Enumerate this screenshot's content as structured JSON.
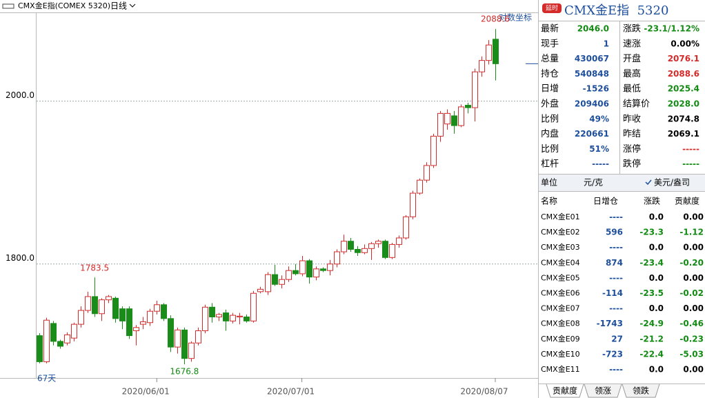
{
  "header": {
    "symbol": "CMX金E指(COMEX 5320)",
    "period": "日线"
  },
  "chart_data": {
    "type": "candlestick",
    "day_count": "67天",
    "log_button": "对数坐标",
    "categories": [
      null,
      null,
      null,
      null,
      null,
      null,
      null,
      null,
      null,
      null,
      null,
      null,
      null,
      null,
      null,
      null,
      null,
      "2020/06/01",
      null,
      null,
      null,
      null,
      null,
      null,
      null,
      null,
      null,
      null,
      null,
      null,
      null,
      null,
      null,
      null,
      null,
      null,
      null,
      null,
      "2020/07/01",
      null,
      null,
      null,
      null,
      null,
      null,
      null,
      null,
      null,
      null,
      null,
      null,
      null,
      null,
      null,
      null,
      null,
      null,
      null,
      null,
      null,
      null,
      null,
      null,
      null,
      null,
      null,
      "2020/08/07"
    ],
    "open": [
      1712,
      1680,
      1727,
      1705,
      1703,
      1709,
      1726,
      1743,
      1760,
      1739,
      1756,
      1758,
      1745,
      1745,
      1718,
      1726,
      1728,
      1742,
      1750,
      1733,
      1698,
      1719,
      1684,
      1703,
      1718,
      1747,
      1735,
      1740,
      1730,
      1735,
      1735,
      1730,
      1766,
      1766,
      1787,
      1775,
      1781,
      1792,
      1788,
      1804,
      1784,
      1794,
      1792,
      1800,
      1815,
      1828,
      1818,
      1814,
      1819,
      1825,
      1828,
      1808,
      1824,
      1832,
      1858,
      1887,
      1903,
      1921,
      1957,
      1972,
      1982,
      1970,
      1995,
      1992,
      2036,
      2050,
      2076.1
    ],
    "high": [
      1715,
      1734,
      1730,
      1707,
      1716,
      1728,
      1748,
      1766,
      1783.5,
      1758,
      1762,
      1760,
      1748,
      1748,
      1725,
      1735,
      1745,
      1755,
      1752,
      1737,
      1722,
      1722,
      1705,
      1722,
      1750,
      1752,
      1740,
      1744,
      1740,
      1740,
      1738,
      1767,
      1772,
      1790,
      1799,
      1786,
      1797,
      1800,
      1810,
      1806,
      1797,
      1796,
      1805,
      1818,
      1836,
      1832,
      1822,
      1824,
      1827,
      1830,
      1830,
      1826,
      1835,
      1860,
      1890,
      1905,
      1925,
      1960,
      1988,
      1990,
      1988,
      1996,
      1998,
      2040,
      2055,
      2075,
      2088.6
    ],
    "low": [
      1678,
      1678,
      1700,
      1696,
      1700,
      1705,
      1722,
      1740,
      1735,
      1730,
      1752,
      1728,
      1720,
      1708,
      1700,
      1720,
      1724,
      1738,
      1730,
      1692,
      1690,
      1676.8,
      1680,
      1700,
      1715,
      1728,
      1730,
      1718,
      1727,
      1726,
      1728,
      1728,
      1764,
      1762,
      1773,
      1770,
      1778,
      1786,
      1785,
      1776,
      1780,
      1790,
      1786,
      1796,
      1812,
      1815,
      1810,
      1812,
      1805,
      1820,
      1806,
      1806,
      1820,
      1830,
      1855,
      1885,
      1900,
      1918,
      1950,
      1965,
      1960,
      1968,
      1985,
      1975,
      2030,
      2045,
      2025.4
    ],
    "close": [
      1680,
      1731,
      1705,
      1699,
      1713,
      1726,
      1743,
      1760,
      1739,
      1756,
      1760,
      1733,
      1730,
      1712,
      1722,
      1729,
      1742,
      1750,
      1733,
      1698,
      1719,
      1684,
      1703,
      1718,
      1747,
      1735,
      1738,
      1730,
      1737,
      1736,
      1730,
      1764,
      1769,
      1787,
      1775,
      1781,
      1792,
      1788,
      1804,
      1784,
      1794,
      1792,
      1800,
      1815,
      1828,
      1818,
      1814,
      1819,
      1825,
      1828,
      1808,
      1824,
      1832,
      1858,
      1887,
      1903,
      1921,
      1957,
      1985,
      1985,
      1970,
      1993,
      1992,
      2036,
      2050,
      2069,
      2046.0
    ],
    "ylim": [
      1660,
      2109
    ],
    "yticks": [
      {
        "value": 1800,
        "label": "1800.0"
      },
      {
        "value": 2000,
        "label": "2000.0"
      }
    ],
    "grid": true,
    "up_color": "#d42a2a",
    "down_color": "#1a8c1a"
  },
  "quote": {
    "badge": "延时",
    "title": "CMX金E指  5320",
    "rows": [
      [
        "最新",
        "2046.0",
        "涨跌",
        "-23.1/1.12%"
      ],
      [
        "现手",
        "1",
        "速涨",
        "0.00%"
      ],
      [
        "总量",
        "430067",
        "开盘",
        "2076.1"
      ],
      [
        "持仓",
        "540848",
        "最高",
        "2088.6"
      ],
      [
        "日增",
        "-1526",
        "最低",
        "2025.4"
      ],
      [
        "外盘",
        "209406",
        "结算价",
        "2028.0"
      ],
      [
        "比例",
        "49%",
        "昨收",
        "2074.8"
      ],
      [
        "内盘",
        "220661",
        "昨结",
        "2069.1"
      ],
      [
        "比例",
        "51%",
        "涨停",
        "-----"
      ],
      [
        "杠杆",
        "-----",
        "跌停",
        "-----"
      ]
    ]
  },
  "units": {
    "label": "单位",
    "cny": "元/克",
    "usd": "美元/盎司"
  },
  "table": {
    "columns": [
      "名称",
      "日增仓",
      "涨跌",
      "贡献度"
    ],
    "rows": [
      [
        "CMX金E01",
        "----",
        "0.0",
        "0.00"
      ],
      [
        "CMX金E02",
        "596",
        "-23.3",
        "-1.12"
      ],
      [
        "CMX金E03",
        "----",
        "0.0",
        "0.00"
      ],
      [
        "CMX金E04",
        "874",
        "-23.4",
        "-0.20"
      ],
      [
        "CMX金E05",
        "----",
        "0.0",
        "0.00"
      ],
      [
        "CMX金E06",
        "-114",
        "-23.5",
        "-0.02"
      ],
      [
        "CMX金E07",
        "----",
        "0.0",
        "0.00"
      ],
      [
        "CMX金E08",
        "-1743",
        "-24.9",
        "-0.46"
      ],
      [
        "CMX金E09",
        "27",
        "-21.2",
        "-0.23"
      ],
      [
        "CMX金E10",
        "-723",
        "-22.4",
        "-5.03"
      ],
      [
        "CMX金E11",
        "----",
        "0.0",
        "0.00"
      ]
    ]
  },
  "tabs": [
    "贡献度",
    "领涨",
    "领跌"
  ]
}
